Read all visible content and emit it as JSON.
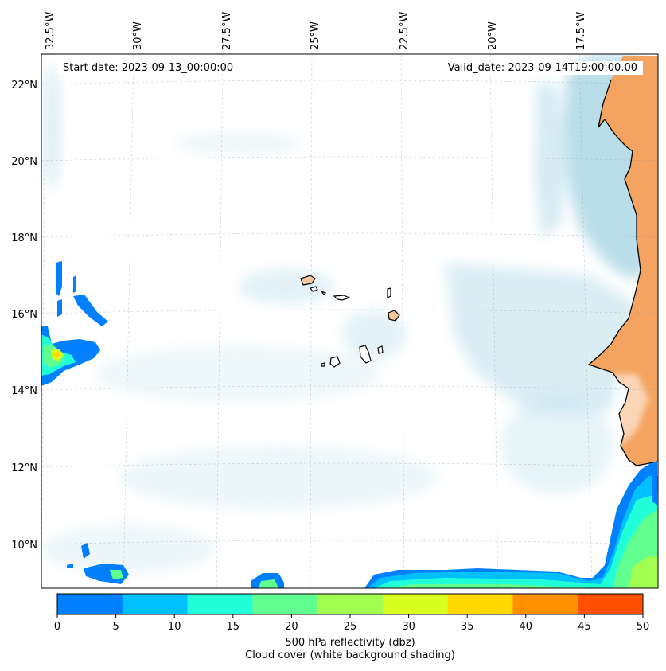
{
  "header": {
    "start_date": "Start date: 2023-09-13_00:00:00",
    "valid_date": "Valid_date: 2023-09-14T19:00:00.00"
  },
  "map": {
    "longitude_labels": [
      "32.5°W",
      "30°W",
      "27.5°W",
      "25°W",
      "22.5°W",
      "20°W",
      "17.5°W"
    ],
    "latitude_labels": [
      "22°N",
      "20°N",
      "18°N",
      "16°N",
      "14°N",
      "12°N",
      "10°N"
    ],
    "land_color": "#f4a460",
    "coastline_color": "#000000",
    "cloud_color": "#add8e6"
  },
  "colorbar": {
    "ticks": [
      "0",
      "5",
      "10",
      "15",
      "20",
      "25",
      "30",
      "35",
      "40",
      "45",
      "50"
    ],
    "colors": [
      "#0080ff",
      "#00c0ff",
      "#20ffd8",
      "#60ff90",
      "#a0ff50",
      "#d8ff20",
      "#ffd800",
      "#ff9000",
      "#ff5000"
    ],
    "title_line1": "500 hPa reflectivity (dbz)",
    "title_line2": "Cloud cover (white background shading)"
  }
}
